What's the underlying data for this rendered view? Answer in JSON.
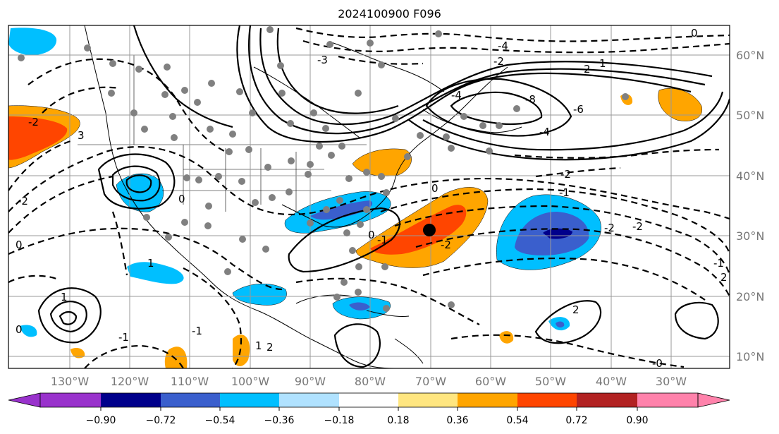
{
  "title": "2024100900 F096",
  "longitudes": [
    {
      "label": "130°W",
      "lon": -130
    },
    {
      "label": "120°W",
      "lon": -120
    },
    {
      "label": "110°W",
      "lon": -110
    },
    {
      "label": "100°W",
      "lon": -100
    },
    {
      "label": "90°W",
      "lon": -90
    },
    {
      "label": "80°W",
      "lon": -80
    },
    {
      "label": "70°W",
      "lon": -70
    },
    {
      "label": "60°W",
      "lon": -60
    },
    {
      "label": "50°W",
      "lon": -50
    },
    {
      "label": "40°W",
      "lon": -40
    },
    {
      "label": "30°W",
      "lon": -30
    }
  ],
  "latitudes": [
    {
      "label": "10°N",
      "lat": 10
    },
    {
      "label": "20°N",
      "lat": 20
    },
    {
      "label": "30°N",
      "lat": 30
    },
    {
      "label": "40°N",
      "lat": 40
    },
    {
      "label": "50°N",
      "lat": 50
    },
    {
      "label": "60°N",
      "lat": 60
    }
  ],
  "colorbar": {
    "ticks": [
      "−0.90",
      "−0.72",
      "−0.54",
      "−0.36",
      "−0.18",
      "0.18",
      "0.36",
      "0.54",
      "0.72",
      "0.90"
    ],
    "colors": [
      "#9932cc",
      "#00008b",
      "#3a5fcd",
      "#00bfff",
      "#b0e2ff",
      "#ffffff",
      "#ffe680",
      "#ffa500",
      "#ff4500",
      "#b22222",
      "#ff82ab"
    ],
    "extend": "both"
  },
  "contour_labels": [
    "0",
    "-4",
    "-2",
    "1",
    "2",
    "-8",
    "-6",
    "-4",
    "3",
    "-2",
    "-1",
    "-2",
    "-2",
    "0",
    "-1",
    "2",
    "-2",
    "1",
    "0",
    "-1",
    "1",
    "0",
    "-1",
    "-0",
    "1",
    "2",
    "0",
    "-2",
    "-3",
    "-4",
    "-2",
    "-1",
    "0",
    "2"
  ],
  "station_markers": "grey dots",
  "highlight_marker": "black dot near 31°N 70°W"
}
